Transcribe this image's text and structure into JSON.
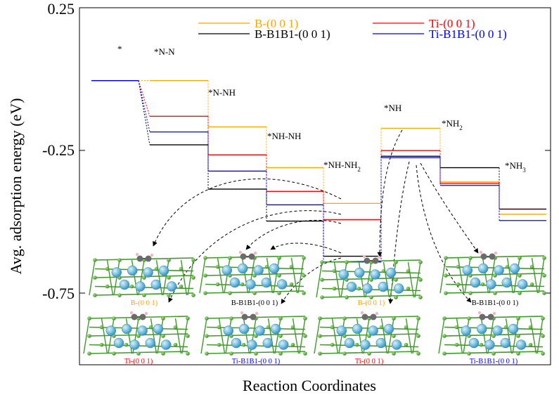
{
  "chart_data": {
    "type": "line",
    "xlabel": "Reaction Coordinates",
    "ylabel": "Avg. adsorption energy (eV)",
    "ylim": [
      -1.0,
      0.25
    ],
    "yticks": [
      "0.25",
      "-0.25",
      "-0.75"
    ],
    "ytick_values": [
      0.25,
      -0.25,
      -0.75
    ],
    "steps": [
      {
        "label": "*"
      },
      {
        "label": "*N-N"
      },
      {
        "label": "*N-NH"
      },
      {
        "label": "*NH-NH"
      },
      {
        "label": "*NH-NH",
        "sub": "2"
      },
      {
        "label": "*NH"
      },
      {
        "label": "*NH",
        "sub": "2"
      },
      {
        "label": "*NH",
        "sub": "3"
      }
    ],
    "series": [
      {
        "name": "B-(0 0 1)",
        "color": "#ffa500",
        "values": [
          -0.005,
          -0.005,
          -0.167,
          -0.31,
          -0.435,
          -0.172,
          -0.36,
          -0.473
        ]
      },
      {
        "name": "Ti-(0 0 1)",
        "color": "#ff0000",
        "values": [
          -0.005,
          -0.13,
          -0.265,
          -0.393,
          -0.492,
          -0.25,
          -0.365,
          -0.455
        ]
      },
      {
        "name": "B-B1B1-(0 0 1)",
        "color": "#000000",
        "values": [
          -0.005,
          -0.23,
          -0.385,
          -0.497,
          -0.62,
          -0.27,
          -0.31,
          -0.455
        ]
      },
      {
        "name": "Ti-B1B1-(0 0 1)",
        "color": "#0000ff",
        "values": [
          -0.005,
          -0.185,
          -0.322,
          -0.44,
          -0.64,
          -0.275,
          -0.372,
          -0.495
        ]
      }
    ],
    "legend_position": "top-right",
    "grid": false,
    "structure_labels": [
      {
        "text": "B-(0 0 1)",
        "color": "#ffa500"
      },
      {
        "text": "B-B1B1-(0 0 1)",
        "color": "#000000"
      },
      {
        "text": "B-(0 0 1)",
        "color": "#ffa500"
      },
      {
        "text": "B-B1B1-(0 0 1)",
        "color": "#000000"
      },
      {
        "text": "Ti-(0 0 1)",
        "color": "#ff0000"
      },
      {
        "text": "Ti-B1B1-(0 0 1)",
        "color": "#0000ff"
      },
      {
        "text": "Ti-(0 0 1)",
        "color": "#ff0000"
      },
      {
        "text": "Ti-B1B1-(0 0 1)",
        "color": "#0000ff"
      }
    ]
  }
}
